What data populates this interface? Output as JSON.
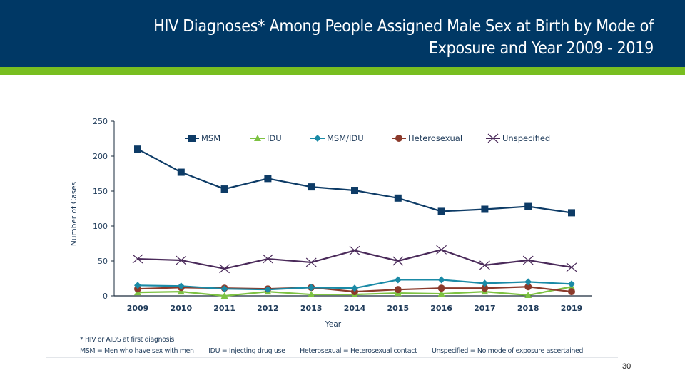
{
  "slide": {
    "title_line1": "HIV Diagnoses* Among People Assigned Male Sex at Birth by Mode of",
    "title_line2": "Exposure and Year 2009 - 2019",
    "page_number": "30",
    "colors": {
      "header": "#003865",
      "accent": "#78be20"
    }
  },
  "footnotes": {
    "asterisk": "* HIV or AIDS at first diagnosis",
    "definitions": [
      "MSM = Men who have sex with men",
      "IDU = Injecting drug use",
      "Heterosexual = Heterosexual contact",
      "Unspecified = No mode of exposure ascertained"
    ]
  },
  "chart_data": {
    "type": "line",
    "title": "",
    "xlabel": "Year",
    "ylabel": "Number of Cases",
    "x": [
      "2009",
      "2010",
      "2011",
      "2012",
      "2013",
      "2014",
      "2015",
      "2016",
      "2017",
      "2018",
      "2019"
    ],
    "ylim": [
      0,
      250
    ],
    "yticks": [
      0,
      50,
      100,
      150,
      200,
      250
    ],
    "grid": false,
    "legend_position": "top",
    "series": [
      {
        "name": "MSM",
        "color": "#0d3b66",
        "marker": "square",
        "values": [
          210,
          177,
          153,
          168,
          156,
          151,
          140,
          121,
          124,
          128,
          119
        ]
      },
      {
        "name": "IDU",
        "color": "#7dc242",
        "marker": "triangle",
        "values": [
          5,
          6,
          0,
          6,
          2,
          2,
          4,
          3,
          6,
          1,
          13
        ]
      },
      {
        "name": "MSM/IDU",
        "color": "#1a8aa6",
        "marker": "diamond",
        "values": [
          15,
          14,
          10,
          9,
          12,
          11,
          23,
          23,
          18,
          20,
          17
        ]
      },
      {
        "name": "Heterosexual",
        "color": "#8b3a2b",
        "marker": "circle",
        "values": [
          10,
          12,
          11,
          10,
          12,
          6,
          9,
          11,
          11,
          13,
          6
        ]
      },
      {
        "name": "Unspecified",
        "color": "#4a2a5a",
        "marker": "x",
        "values": [
          53,
          51,
          39,
          53,
          48,
          65,
          50,
          66,
          44,
          51,
          41
        ]
      }
    ]
  }
}
